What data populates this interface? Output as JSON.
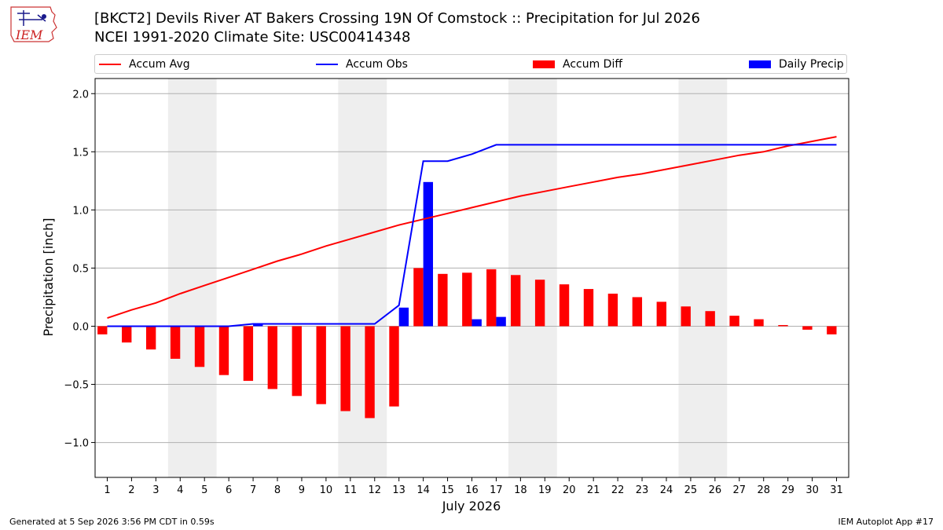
{
  "header": {
    "title_line1": "[BKCT2] Devils River  AT Bakers Crossing 19N Of Comstock :: Precipitation for Jul 2026",
    "title_line2": "NCEI 1991-2020 Climate Site: USC00414348",
    "logo_text": "IEM"
  },
  "legend": {
    "accum_avg": "Accum Avg",
    "accum_obs": "Accum Obs",
    "accum_diff": "Accum Diff",
    "daily_precip": "Daily Precip"
  },
  "footer": {
    "generated": "Generated at 5 Sep 2026 3:56 PM CDT in 0.59s",
    "app": "IEM Autoplot App #17"
  },
  "colors": {
    "accum_avg": "#ff0000",
    "accum_obs": "#0000ff",
    "accum_diff": "#ff0000",
    "daily_precip": "#0000ff",
    "weekend_shade": "#eeeeee",
    "grid": "#b0b0b0"
  },
  "chart_data": {
    "type": "bar",
    "xlabel": "July 2026",
    "ylabel": "Precipitation [inch]",
    "ylim": [
      -1.3,
      2.13
    ],
    "yticks": [
      -1.0,
      -0.5,
      0.0,
      0.5,
      1.0,
      1.5,
      2.0
    ],
    "ytick_labels": [
      "−1.0",
      "−0.5",
      "0.0",
      "0.5",
      "1.0",
      "1.5",
      "2.0"
    ],
    "grid": true,
    "legend_position": "top",
    "days": [
      1,
      2,
      3,
      4,
      5,
      6,
      7,
      8,
      9,
      10,
      11,
      12,
      13,
      14,
      15,
      16,
      17,
      18,
      19,
      20,
      21,
      22,
      23,
      24,
      25,
      26,
      27,
      28,
      29,
      30,
      31
    ],
    "weekend_spans": [
      [
        4,
        5
      ],
      [
        11,
        12
      ],
      [
        18,
        19
      ],
      [
        25,
        26
      ]
    ],
    "series": [
      {
        "name": "Accum Avg",
        "kind": "line",
        "values": [
          0.07,
          0.14,
          0.2,
          0.28,
          0.35,
          0.42,
          0.49,
          0.56,
          0.62,
          0.69,
          0.75,
          0.81,
          0.87,
          0.92,
          0.97,
          1.02,
          1.07,
          1.12,
          1.16,
          1.2,
          1.24,
          1.28,
          1.31,
          1.35,
          1.39,
          1.43,
          1.47,
          1.5,
          1.55,
          1.59,
          1.63
        ]
      },
      {
        "name": "Accum Obs",
        "kind": "line",
        "values": [
          0.0,
          0.0,
          0.0,
          0.0,
          0.0,
          0.0,
          0.02,
          0.02,
          0.02,
          0.02,
          0.02,
          0.02,
          0.18,
          1.42,
          1.42,
          1.48,
          1.56,
          1.56,
          1.56,
          1.56,
          1.56,
          1.56,
          1.56,
          1.56,
          1.56,
          1.56,
          1.56,
          1.56,
          1.56,
          1.56,
          1.56
        ]
      },
      {
        "name": "Accum Diff",
        "kind": "bar",
        "values": [
          -0.07,
          -0.14,
          -0.2,
          -0.28,
          -0.35,
          -0.42,
          -0.47,
          -0.54,
          -0.6,
          -0.67,
          -0.73,
          -0.79,
          -0.69,
          0.5,
          0.45,
          0.46,
          0.49,
          0.44,
          0.4,
          0.36,
          0.32,
          0.28,
          0.25,
          0.21,
          0.17,
          0.13,
          0.09,
          0.06,
          0.01,
          -0.03,
          -0.07
        ]
      },
      {
        "name": "Daily Precip",
        "kind": "bar",
        "values": [
          0,
          0,
          0,
          0,
          0,
          0,
          0.02,
          0,
          0,
          0,
          0,
          0,
          0.16,
          1.24,
          0,
          0.06,
          0.08,
          0,
          0,
          0,
          0,
          0,
          0,
          0,
          0,
          0,
          0,
          0,
          0,
          0,
          0
        ]
      }
    ]
  }
}
